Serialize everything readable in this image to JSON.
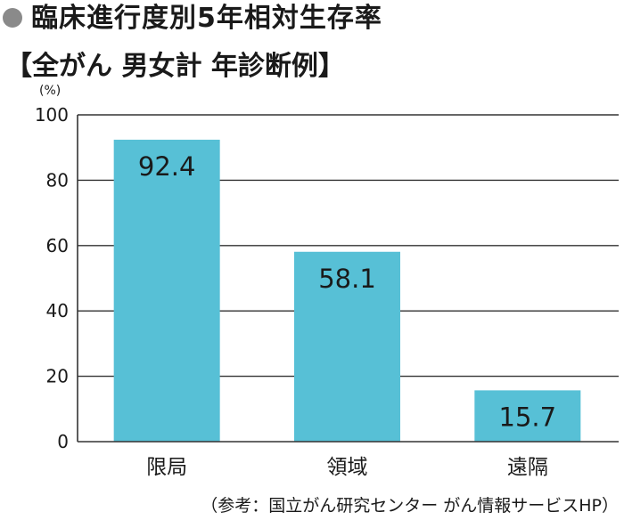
{
  "title": "臨床進行度別5年相対生存率",
  "subtitle": "【全がん 男女計 年診断例】",
  "icons": {
    "title_marker": "circle-bullet-icon"
  },
  "colors": {
    "bar": "#57c0d6",
    "axis": "#333333",
    "grid": "#333333",
    "text": "#1a1a1a",
    "marker": "#8a8a8a"
  },
  "source": "（参考：国立がん研究センター がん情報サービスHP）",
  "chart_data": {
    "type": "bar",
    "title": "臨床進行度別5年相対生存率",
    "subtitle": "【全がん 男女計 年診断例】",
    "ylabel": "(%)",
    "categories": [
      "限局",
      "領域",
      "遠隔"
    ],
    "values": [
      92.4,
      58.1,
      15.7
    ],
    "value_labels": [
      "92.4",
      "58.1",
      "15.7"
    ],
    "ylim": [
      0,
      100
    ],
    "yticks": [
      0,
      20,
      40,
      60,
      80,
      100
    ],
    "grid": true,
    "legend": "none"
  }
}
